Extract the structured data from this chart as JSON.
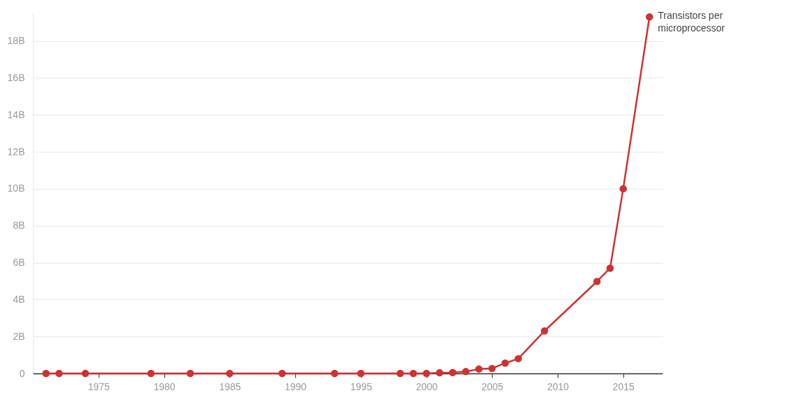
{
  "chart_data": {
    "type": "line",
    "x": [
      1971,
      1972,
      1974,
      1979,
      1982,
      1985,
      1989,
      1993,
      1995,
      1998,
      1999,
      2000,
      2001,
      2002,
      2003,
      2004,
      2005,
      2006,
      2007,
      2009,
      2013,
      2014,
      2015,
      2017
    ],
    "series": [
      {
        "name": "Transistors per microprocessor",
        "color": "#cc3333",
        "values": [
          0,
          0,
          0,
          0,
          0,
          0,
          0,
          0,
          0,
          0,
          0,
          0,
          0.04,
          0.05,
          0.1,
          0.24,
          0.27,
          0.56,
          0.8,
          2.3,
          4.98,
          5.7,
          10,
          19.3
        ]
      }
    ],
    "xlim": [
      1970,
      2018
    ],
    "xticks": [
      1975,
      1980,
      1985,
      1990,
      1995,
      2000,
      2005,
      2010,
      2015
    ],
    "ylim": [
      0,
      19.5
    ],
    "yticks": [
      0,
      {
        "value": 2,
        "label": "2B"
      },
      {
        "value": 4,
        "label": "4B"
      },
      {
        "value": 6,
        "label": "6B"
      },
      {
        "value": 8,
        "label": "8B"
      },
      {
        "value": 10,
        "label": "10B"
      },
      {
        "value": 12,
        "label": "12B"
      },
      {
        "value": 14,
        "label": "14B"
      },
      {
        "value": 16,
        "label": "16B"
      },
      {
        "value": 18,
        "label": "18B"
      }
    ],
    "grid": "y",
    "marker": "circle",
    "line_style": "solid"
  }
}
